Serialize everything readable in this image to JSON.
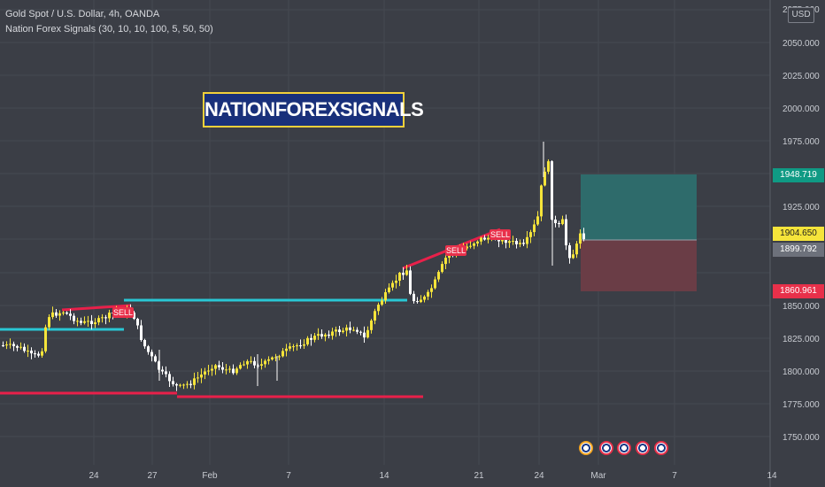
{
  "header": {
    "symbol_line": "Gold Spot / U.S. Dollar, 4h, OANDA",
    "indicator_line": "Nation Forex Signals (30, 10, 10, 100, 5, 50, 50)"
  },
  "banner_text": "NATIONFOREXSIGNALS",
  "currency_label": "USD",
  "price_axis": {
    "top_label": "2075.000",
    "ticks": [
      "2050.000",
      "2025.000",
      "2000.000",
      "1975.000",
      "1925.000",
      "1850.000",
      "1825.000",
      "1800.000",
      "1775.000",
      "1750.000"
    ]
  },
  "time_axis": {
    "ticks": [
      "24",
      "27",
      "Feb",
      "7",
      "14",
      "21",
      "24",
      "Mar",
      "7",
      "14"
    ]
  },
  "price_tags": {
    "take_profit": "1948.719",
    "entry": "1904.650",
    "current": "1899.792",
    "stop_loss": "1860.961"
  },
  "signal_labels": {
    "sell_1": "SELL",
    "sell_2": "SELL",
    "sell_3": "SELL"
  },
  "colors": {
    "background": "#3b3e46",
    "bull_candle": "#f5e43a",
    "bear_candle": "#ffffff",
    "support_line": "#29c7d4",
    "resistance_line": "#e8204a",
    "profit_zone": "#2e6b6b",
    "loss_zone": "#6a3d46",
    "take_profit_tag": "#0f9a84",
    "entry_tag": "#f5e43a",
    "current_tag": "#6d717b",
    "stop_loss_tag": "#e8304a"
  },
  "event_icons": [
    "flag-us-icon",
    "flag-us-icon",
    "flag-us-icon",
    "flag-us-icon",
    "flag-us-icon"
  ]
}
